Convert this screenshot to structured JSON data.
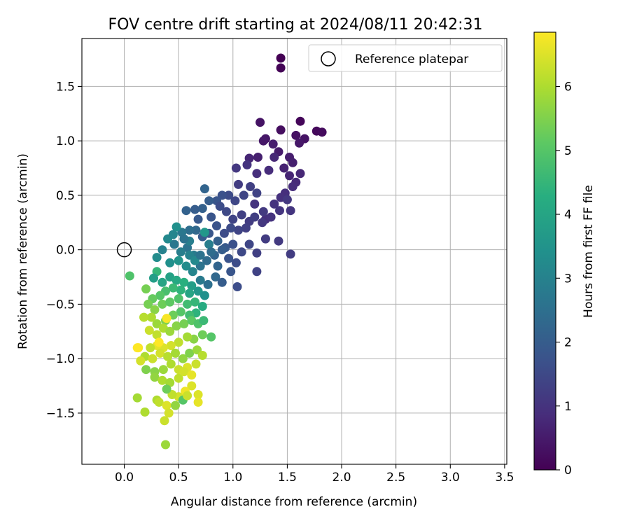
{
  "chart_data": {
    "type": "scatter",
    "title": "FOV centre drift starting at 2024/08/11 20:42:31",
    "xlabel": "Angular distance from reference (arcmin)",
    "ylabel": "Rotation from reference (arcmin)",
    "xlim": [
      -0.39,
      3.52
    ],
    "ylim": [
      -1.97,
      1.94
    ],
    "x_ticks": [
      0.0,
      0.5,
      1.0,
      1.5,
      2.0,
      2.5,
      3.0,
      3.5
    ],
    "x_tick_labels": [
      "0.0",
      "0.5",
      "1.0",
      "1.5",
      "2.0",
      "2.5",
      "3.0",
      "3.5"
    ],
    "y_ticks": [
      -1.5,
      -1.0,
      -0.5,
      0.0,
      0.5,
      1.0,
      1.5
    ],
    "y_tick_labels": [
      "−1.5",
      "−1.0",
      "−0.5",
      "0.0",
      "0.5",
      "1.0",
      "1.5"
    ],
    "grid": true,
    "legend": {
      "placement": "upper right",
      "entries": [
        "Reference platepar"
      ]
    },
    "reference_point": {
      "x": 0.0,
      "y": 0.0
    },
    "colorbar": {
      "label": "Hours from first FF file",
      "colormap": "viridis",
      "range": [
        0,
        6.85
      ],
      "ticks": [
        0,
        1,
        2,
        3,
        4,
        5,
        6
      ],
      "tick_labels": [
        "0",
        "1",
        "2",
        "3",
        "4",
        "5",
        "6"
      ]
    },
    "points": [
      {
        "x": 1.44,
        "y": 1.76,
        "h": 0.0
      },
      {
        "x": 1.44,
        "y": 1.67,
        "h": 0.05
      },
      {
        "x": 1.62,
        "y": 1.18,
        "h": 0.1
      },
      {
        "x": 1.77,
        "y": 1.09,
        "h": 0.15
      },
      {
        "x": 1.82,
        "y": 1.08,
        "h": 0.2
      },
      {
        "x": 1.44,
        "y": 1.1,
        "h": 0.25
      },
      {
        "x": 1.58,
        "y": 1.05,
        "h": 0.3
      },
      {
        "x": 1.66,
        "y": 1.02,
        "h": 0.35
      },
      {
        "x": 1.3,
        "y": 1.02,
        "h": 0.4
      },
      {
        "x": 1.61,
        "y": 0.98,
        "h": 0.45
      },
      {
        "x": 1.42,
        "y": 0.9,
        "h": 0.5
      },
      {
        "x": 1.52,
        "y": 0.85,
        "h": 0.55
      },
      {
        "x": 1.55,
        "y": 0.8,
        "h": 0.6
      },
      {
        "x": 1.47,
        "y": 0.75,
        "h": 0.65
      },
      {
        "x": 1.52,
        "y": 0.68,
        "h": 0.7
      },
      {
        "x": 1.62,
        "y": 0.7,
        "h": 0.75
      },
      {
        "x": 1.58,
        "y": 0.62,
        "h": 0.8
      },
      {
        "x": 1.55,
        "y": 0.58,
        "h": 0.85
      },
      {
        "x": 1.48,
        "y": 0.52,
        "h": 0.9
      },
      {
        "x": 1.44,
        "y": 0.48,
        "h": 0.95
      },
      {
        "x": 1.38,
        "y": 0.42,
        "h": 1.0
      },
      {
        "x": 1.53,
        "y": 0.36,
        "h": 1.05
      },
      {
        "x": 1.5,
        "y": 0.46,
        "h": 1.1
      },
      {
        "x": 1.42,
        "y": 0.08,
        "h": 1.15
      },
      {
        "x": 1.53,
        "y": -0.04,
        "h": 1.2
      },
      {
        "x": 1.3,
        "y": 0.28,
        "h": 0.9
      },
      {
        "x": 1.2,
        "y": 0.42,
        "h": 1.0
      },
      {
        "x": 1.25,
        "y": 1.17,
        "h": 0.35
      },
      {
        "x": 1.28,
        "y": 1.0,
        "h": 0.45
      },
      {
        "x": 1.37,
        "y": 0.97,
        "h": 0.55
      },
      {
        "x": 1.23,
        "y": 0.85,
        "h": 0.6
      },
      {
        "x": 1.15,
        "y": 0.84,
        "h": 0.7
      },
      {
        "x": 1.38,
        "y": 0.85,
        "h": 0.75
      },
      {
        "x": 1.33,
        "y": 0.73,
        "h": 0.85
      },
      {
        "x": 1.22,
        "y": 0.7,
        "h": 0.9
      },
      {
        "x": 1.13,
        "y": 0.78,
        "h": 1.0
      },
      {
        "x": 1.03,
        "y": 0.75,
        "h": 1.1
      },
      {
        "x": 1.05,
        "y": 0.6,
        "h": 1.2
      },
      {
        "x": 1.16,
        "y": 0.58,
        "h": 1.3
      },
      {
        "x": 1.22,
        "y": 0.52,
        "h": 1.35
      },
      {
        "x": 1.1,
        "y": 0.5,
        "h": 1.4
      },
      {
        "x": 1.02,
        "y": 0.45,
        "h": 1.45
      },
      {
        "x": 0.96,
        "y": 0.5,
        "h": 1.55
      },
      {
        "x": 0.9,
        "y": 0.5,
        "h": 1.7
      },
      {
        "x": 0.85,
        "y": 0.45,
        "h": 1.8
      },
      {
        "x": 0.78,
        "y": 0.45,
        "h": 2.0
      },
      {
        "x": 0.74,
        "y": 0.56,
        "h": 2.2
      },
      {
        "x": 0.72,
        "y": 0.38,
        "h": 2.1
      },
      {
        "x": 0.65,
        "y": 0.37,
        "h": 2.0
      },
      {
        "x": 0.57,
        "y": 0.36,
        "h": 2.15
      },
      {
        "x": 0.68,
        "y": 0.28,
        "h": 1.9
      },
      {
        "x": 0.8,
        "y": 0.3,
        "h": 1.8
      },
      {
        "x": 0.88,
        "y": 0.4,
        "h": 1.6
      },
      {
        "x": 0.94,
        "y": 0.35,
        "h": 1.5
      },
      {
        "x": 1.0,
        "y": 0.28,
        "h": 1.4
      },
      {
        "x": 1.08,
        "y": 0.32,
        "h": 1.3
      },
      {
        "x": 1.15,
        "y": 0.26,
        "h": 1.2
      },
      {
        "x": 1.27,
        "y": 0.25,
        "h": 1.1
      },
      {
        "x": 1.35,
        "y": 0.3,
        "h": 1.0
      },
      {
        "x": 1.43,
        "y": 0.36,
        "h": 1.05
      },
      {
        "x": 1.28,
        "y": 0.35,
        "h": 1.15
      },
      {
        "x": 1.2,
        "y": 0.3,
        "h": 1.25
      },
      {
        "x": 1.12,
        "y": 0.2,
        "h": 1.3
      },
      {
        "x": 1.05,
        "y": 0.18,
        "h": 1.4
      },
      {
        "x": 0.98,
        "y": 0.2,
        "h": 1.55
      },
      {
        "x": 0.92,
        "y": 0.15,
        "h": 1.6
      },
      {
        "x": 0.85,
        "y": 0.22,
        "h": 1.75
      },
      {
        "x": 0.78,
        "y": 0.15,
        "h": 1.85
      },
      {
        "x": 0.72,
        "y": 0.12,
        "h": 1.95
      },
      {
        "x": 0.66,
        "y": 0.18,
        "h": 2.3
      },
      {
        "x": 0.6,
        "y": 0.18,
        "h": 2.45
      },
      {
        "x": 0.53,
        "y": 0.16,
        "h": 2.7
      },
      {
        "x": 0.48,
        "y": 0.21,
        "h": 3.4
      },
      {
        "x": 0.74,
        "y": 0.16,
        "h": 3.6
      },
      {
        "x": 0.78,
        "y": 0.05,
        "h": 2.9
      },
      {
        "x": 0.86,
        "y": 0.08,
        "h": 2.1
      },
      {
        "x": 0.93,
        "y": 0.02,
        "h": 1.9
      },
      {
        "x": 1.0,
        "y": 0.05,
        "h": 1.7
      },
      {
        "x": 1.08,
        "y": -0.02,
        "h": 1.5
      },
      {
        "x": 1.15,
        "y": 0.05,
        "h": 1.45
      },
      {
        "x": 1.22,
        "y": -0.03,
        "h": 1.3
      },
      {
        "x": 1.3,
        "y": 0.1,
        "h": 1.2
      },
      {
        "x": 1.22,
        "y": -0.2,
        "h": 1.35
      },
      {
        "x": 1.03,
        "y": -0.12,
        "h": 1.6
      },
      {
        "x": 0.96,
        "y": -0.08,
        "h": 1.75
      },
      {
        "x": 0.9,
        "y": 0.0,
        "h": 2.0
      },
      {
        "x": 0.83,
        "y": -0.05,
        "h": 2.2
      },
      {
        "x": 0.76,
        "y": -0.1,
        "h": 2.4
      },
      {
        "x": 0.7,
        "y": -0.15,
        "h": 2.6
      },
      {
        "x": 0.64,
        "y": -0.05,
        "h": 2.8
      },
      {
        "x": 0.58,
        "y": 0.02,
        "h": 2.6
      },
      {
        "x": 0.52,
        "y": -0.02,
        "h": 2.9
      },
      {
        "x": 0.46,
        "y": 0.05,
        "h": 2.7
      },
      {
        "x": 0.4,
        "y": 0.1,
        "h": 3.2
      },
      {
        "x": 0.35,
        "y": 0.0,
        "h": 3.0
      },
      {
        "x": 0.3,
        "y": -0.07,
        "h": 3.3
      },
      {
        "x": 0.42,
        "y": -0.12,
        "h": 3.4
      },
      {
        "x": 0.5,
        "y": -0.1,
        "h": 3.5
      },
      {
        "x": 0.57,
        "y": -0.15,
        "h": 3.3
      },
      {
        "x": 0.63,
        "y": -0.2,
        "h": 3.1
      },
      {
        "x": 0.7,
        "y": -0.28,
        "h": 2.8
      },
      {
        "x": 0.77,
        "y": -0.32,
        "h": 2.5
      },
      {
        "x": 0.84,
        "y": -0.25,
        "h": 2.3
      },
      {
        "x": 0.9,
        "y": -0.3,
        "h": 2.0
      },
      {
        "x": 0.98,
        "y": -0.2,
        "h": 1.8
      },
      {
        "x": 1.04,
        "y": -0.34,
        "h": 1.6
      },
      {
        "x": 0.86,
        "y": -0.15,
        "h": 2.2
      },
      {
        "x": 0.8,
        "y": -0.02,
        "h": 2.4
      },
      {
        "x": 0.6,
        "y": 0.08,
        "h": 2.9
      },
      {
        "x": 0.55,
        "y": 0.1,
        "h": 2.6
      },
      {
        "x": 0.45,
        "y": 0.14,
        "h": 3.1
      },
      {
        "x": 0.3,
        "y": -0.2,
        "h": 4.5
      },
      {
        "x": 0.27,
        "y": -0.26,
        "h": 3.8
      },
      {
        "x": 0.35,
        "y": -0.3,
        "h": 4.0
      },
      {
        "x": 0.42,
        "y": -0.25,
        "h": 3.9
      },
      {
        "x": 0.48,
        "y": -0.28,
        "h": 4.1
      },
      {
        "x": 0.55,
        "y": -0.3,
        "h": 4.3
      },
      {
        "x": 0.62,
        "y": -0.33,
        "h": 3.8
      },
      {
        "x": 0.68,
        "y": -0.38,
        "h": 3.6
      },
      {
        "x": 0.74,
        "y": -0.42,
        "h": 3.4
      },
      {
        "x": 0.6,
        "y": -0.4,
        "h": 4.0
      },
      {
        "x": 0.52,
        "y": -0.37,
        "h": 4.4
      },
      {
        "x": 0.45,
        "y": -0.35,
        "h": 4.6
      },
      {
        "x": 0.38,
        "y": -0.38,
        "h": 4.8
      },
      {
        "x": 0.33,
        "y": -0.42,
        "h": 5.0
      },
      {
        "x": 0.26,
        "y": -0.45,
        "h": 5.2
      },
      {
        "x": 0.2,
        "y": -0.36,
        "h": 5.4
      },
      {
        "x": 0.05,
        "y": -0.24,
        "h": 4.9
      },
      {
        "x": 0.22,
        "y": -0.5,
        "h": 5.4
      },
      {
        "x": 0.28,
        "y": -0.55,
        "h": 5.6
      },
      {
        "x": 0.35,
        "y": -0.5,
        "h": 5.3
      },
      {
        "x": 0.42,
        "y": -0.48,
        "h": 5.1
      },
      {
        "x": 0.5,
        "y": -0.45,
        "h": 4.9
      },
      {
        "x": 0.58,
        "y": -0.5,
        "h": 4.7
      },
      {
        "x": 0.65,
        "y": -0.48,
        "h": 4.5
      },
      {
        "x": 0.72,
        "y": -0.52,
        "h": 4.2
      },
      {
        "x": 0.66,
        "y": -0.58,
        "h": 4.4
      },
      {
        "x": 0.6,
        "y": -0.6,
        "h": 4.7
      },
      {
        "x": 0.52,
        "y": -0.57,
        "h": 5.0
      },
      {
        "x": 0.45,
        "y": -0.6,
        "h": 5.3
      },
      {
        "x": 0.38,
        "y": -0.65,
        "h": 5.5
      },
      {
        "x": 0.3,
        "y": -0.68,
        "h": 5.8
      },
      {
        "x": 0.25,
        "y": -0.62,
        "h": 6.0
      },
      {
        "x": 0.18,
        "y": -0.62,
        "h": 6.1
      },
      {
        "x": 0.23,
        "y": -0.74,
        "h": 6.3
      },
      {
        "x": 0.3,
        "y": -0.78,
        "h": 6.2
      },
      {
        "x": 0.36,
        "y": -0.72,
        "h": 6.0
      },
      {
        "x": 0.42,
        "y": -0.75,
        "h": 5.8
      },
      {
        "x": 0.48,
        "y": -0.7,
        "h": 5.6
      },
      {
        "x": 0.55,
        "y": -0.68,
        "h": 5.4
      },
      {
        "x": 0.62,
        "y": -0.65,
        "h": 5.1
      },
      {
        "x": 0.68,
        "y": -0.68,
        "h": 4.9
      },
      {
        "x": 0.73,
        "y": -0.65,
        "h": 4.6
      },
      {
        "x": 0.8,
        "y": -0.8,
        "h": 5.0
      },
      {
        "x": 0.72,
        "y": -0.78,
        "h": 5.3
      },
      {
        "x": 0.64,
        "y": -0.82,
        "h": 5.6
      },
      {
        "x": 0.58,
        "y": -0.8,
        "h": 5.9
      },
      {
        "x": 0.5,
        "y": -0.85,
        "h": 6.2
      },
      {
        "x": 0.43,
        "y": -0.88,
        "h": 6.4
      },
      {
        "x": 0.36,
        "y": -0.9,
        "h": 6.5
      },
      {
        "x": 0.3,
        "y": -0.88,
        "h": 6.6
      },
      {
        "x": 0.24,
        "y": -0.9,
        "h": 6.2
      },
      {
        "x": 0.13,
        "y": -0.9,
        "h": 6.8
      },
      {
        "x": 0.19,
        "y": -0.98,
        "h": 6.0
      },
      {
        "x": 0.26,
        "y": -1.0,
        "h": 6.3
      },
      {
        "x": 0.33,
        "y": -0.95,
        "h": 6.4
      },
      {
        "x": 0.4,
        "y": -0.98,
        "h": 6.1
      },
      {
        "x": 0.47,
        "y": -0.95,
        "h": 5.9
      },
      {
        "x": 0.54,
        "y": -1.0,
        "h": 5.7
      },
      {
        "x": 0.6,
        "y": -0.95,
        "h": 5.5
      },
      {
        "x": 0.67,
        "y": -0.92,
        "h": 5.8
      },
      {
        "x": 0.72,
        "y": -0.97,
        "h": 6.1
      },
      {
        "x": 0.66,
        "y": -1.05,
        "h": 6.3
      },
      {
        "x": 0.58,
        "y": -1.08,
        "h": 6.5
      },
      {
        "x": 0.5,
        "y": -1.1,
        "h": 6.3
      },
      {
        "x": 0.43,
        "y": -1.05,
        "h": 6.0
      },
      {
        "x": 0.36,
        "y": -1.1,
        "h": 5.8
      },
      {
        "x": 0.28,
        "y": -1.12,
        "h": 5.6
      },
      {
        "x": 0.2,
        "y": -1.1,
        "h": 5.5
      },
      {
        "x": 0.15,
        "y": -1.02,
        "h": 6.4
      },
      {
        "x": 0.28,
        "y": -1.17,
        "h": 5.7
      },
      {
        "x": 0.35,
        "y": -1.2,
        "h": 6.0
      },
      {
        "x": 0.42,
        "y": -1.22,
        "h": 5.9
      },
      {
        "x": 0.5,
        "y": -1.18,
        "h": 6.2
      },
      {
        "x": 0.55,
        "y": -1.12,
        "h": 6.4
      },
      {
        "x": 0.62,
        "y": -1.15,
        "h": 6.6
      },
      {
        "x": 0.62,
        "y": -1.25,
        "h": 6.5
      },
      {
        "x": 0.56,
        "y": -1.3,
        "h": 6.7
      },
      {
        "x": 0.5,
        "y": -1.35,
        "h": 6.4
      },
      {
        "x": 0.44,
        "y": -1.33,
        "h": 6.2
      },
      {
        "x": 0.39,
        "y": -1.28,
        "h": 5.3
      },
      {
        "x": 0.3,
        "y": -1.38,
        "h": 6.0
      },
      {
        "x": 0.12,
        "y": -1.36,
        "h": 5.9
      },
      {
        "x": 0.19,
        "y": -1.49,
        "h": 6.0
      },
      {
        "x": 0.32,
        "y": -1.4,
        "h": 6.2
      },
      {
        "x": 0.39,
        "y": -1.43,
        "h": 6.5
      },
      {
        "x": 0.47,
        "y": -1.43,
        "h": 5.7
      },
      {
        "x": 0.54,
        "y": -1.38,
        "h": 5.0
      },
      {
        "x": 0.58,
        "y": -1.34,
        "h": 6.3
      },
      {
        "x": 0.68,
        "y": -1.33,
        "h": 6.5
      },
      {
        "x": 0.68,
        "y": -1.4,
        "h": 6.6
      },
      {
        "x": 0.41,
        "y": -1.5,
        "h": 6.4
      },
      {
        "x": 0.37,
        "y": -1.57,
        "h": 6.3
      },
      {
        "x": 0.38,
        "y": -1.79,
        "h": 5.8
      },
      {
        "x": 0.39,
        "y": -0.63,
        "h": 6.8
      },
      {
        "x": 0.32,
        "y": -0.85,
        "h": 6.85
      },
      {
        "x": 0.12,
        "y": -0.9,
        "h": 6.85
      },
      {
        "x": 0.6,
        "y": -0.05,
        "h": 3.0
      },
      {
        "x": 0.65,
        "y": -0.1,
        "h": 3.2
      },
      {
        "x": 0.7,
        "y": -0.05,
        "h": 2.6
      }
    ]
  }
}
